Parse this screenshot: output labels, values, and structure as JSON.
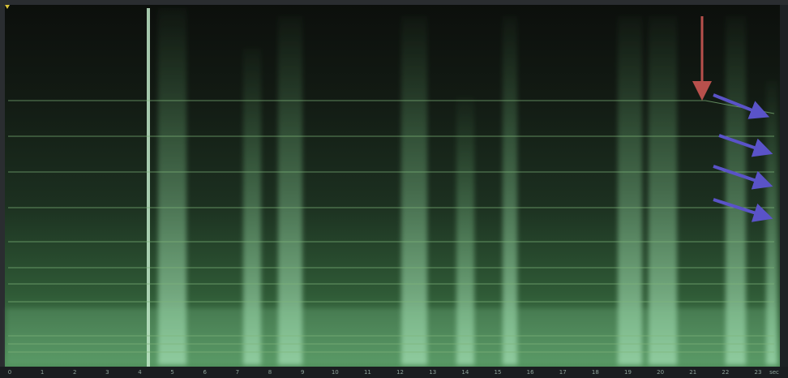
{
  "timeline": {
    "labels": [
      "0",
      "1",
      "2",
      "3",
      "4",
      "5",
      "6",
      "7",
      "8",
      "9",
      "10",
      "11",
      "12",
      "13",
      "14",
      "15",
      "16",
      "17",
      "18",
      "19",
      "20",
      "21",
      "22",
      "23",
      "sec"
    ]
  }
}
